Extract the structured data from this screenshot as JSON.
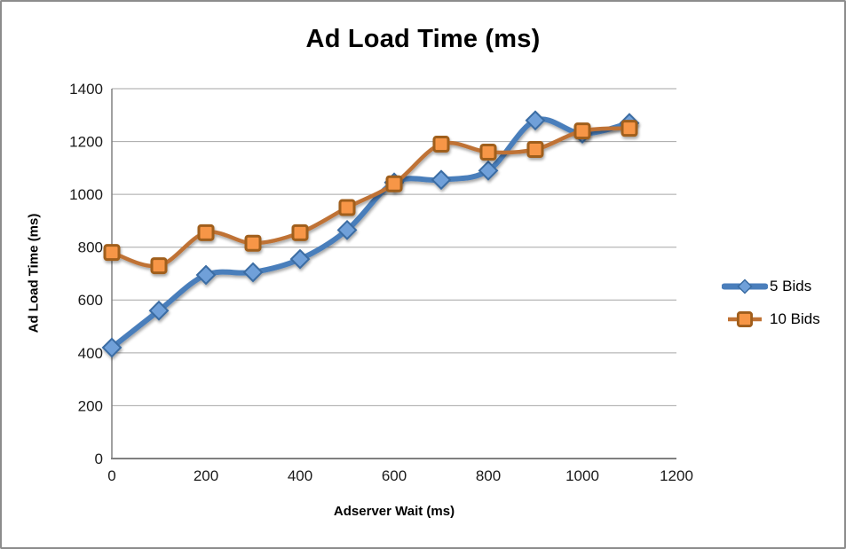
{
  "chart_data": {
    "type": "line",
    "title": "Ad Load Time (ms)",
    "xlabel": "Adserver Wait (ms)",
    "ylabel": "Ad Load Time (ms)",
    "x": [
      0,
      100,
      200,
      300,
      400,
      500,
      600,
      700,
      800,
      900,
      1000,
      1100
    ],
    "series": [
      {
        "name": "5 Bids",
        "values": [
          420,
          560,
          695,
          705,
          755,
          865,
          1045,
          1055,
          1090,
          1280,
          1230,
          1270
        ],
        "line_color": "#4A7EBB",
        "line_width": 6,
        "marker": "diamond",
        "marker_fill": "#6FA0D9",
        "marker_stroke": "#3A6CA3"
      },
      {
        "name": "10 Bids",
        "values": [
          780,
          730,
          855,
          815,
          855,
          950,
          1040,
          1190,
          1160,
          1170,
          1240,
          1250
        ],
        "line_color": "#BF7234",
        "line_width": 4.5,
        "marker": "square",
        "marker_fill": "#F79646",
        "marker_stroke": "#A05E1C"
      }
    ],
    "xlim": [
      0,
      1200
    ],
    "ylim": [
      0,
      1400
    ],
    "x_ticks": [
      0,
      200,
      400,
      600,
      800,
      1000,
      1200
    ],
    "y_ticks": [
      0,
      200,
      400,
      600,
      800,
      1000,
      1200,
      1400
    ],
    "grid": true,
    "smooth": true,
    "legend_position": "right",
    "colors": {
      "gridline": "#A6A6A6",
      "axis": "#808080",
      "text": "#1A1A1A",
      "border": "#8C8C8C",
      "background": "#FFFFFF"
    }
  }
}
